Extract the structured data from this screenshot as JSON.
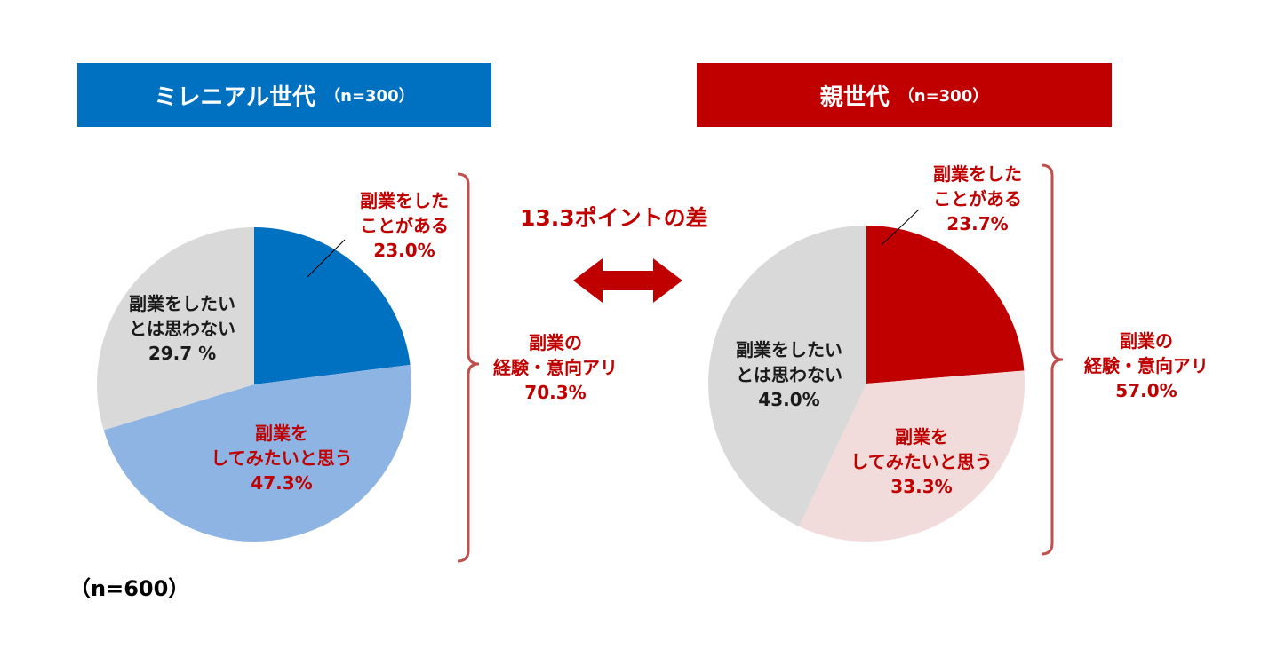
{
  "colors": {
    "millennial_header": "#0070c0",
    "parent_header": "#c00000",
    "millennial": [
      "#0070c0",
      "#8db4e2",
      "#d9d9d9"
    ],
    "parent": [
      "#c00000",
      "#f2dcdb",
      "#d9d9d9"
    ],
    "accent": "#c00000"
  },
  "headers": {
    "millennial": {
      "title": "ミレニアル世代",
      "n": "（n=300）"
    },
    "parent": {
      "title": "親世代",
      "n": "（n=300）"
    }
  },
  "comparison": {
    "label": "13.3ポイントの差"
  },
  "footnote": "（n=600）",
  "chart_data": [
    {
      "type": "pie",
      "title": "ミレニアル世代（n=300）",
      "slices": [
        {
          "label_lines": [
            "副業をした",
            "ことがある"
          ],
          "value": 23.0,
          "display": "23.0%"
        },
        {
          "label_lines": [
            "副業を",
            "してみたいと思う"
          ],
          "value": 47.3,
          "display": "47.3%"
        },
        {
          "label_lines": [
            "副業をしたい",
            "とは思わない"
          ],
          "value": 29.7,
          "display": "29.7 %"
        }
      ],
      "bracket": {
        "label_lines": [
          "副業の",
          "経験・意向アリ"
        ],
        "value": 70.3,
        "display": "70.3%"
      }
    },
    {
      "type": "pie",
      "title": "親世代（n=300）",
      "slices": [
        {
          "label_lines": [
            "副業をした",
            "ことがある"
          ],
          "value": 23.7,
          "display": "23.7%"
        },
        {
          "label_lines": [
            "副業を",
            "してみたいと思う"
          ],
          "value": 33.3,
          "display": "33.3%"
        },
        {
          "label_lines": [
            "副業をしたい",
            "とは思わない"
          ],
          "value": 43.0,
          "display": "43.0%"
        }
      ],
      "bracket": {
        "label_lines": [
          "副業の",
          "経験・意向アリ"
        ],
        "value": 57.0,
        "display": "57.0%"
      }
    }
  ]
}
